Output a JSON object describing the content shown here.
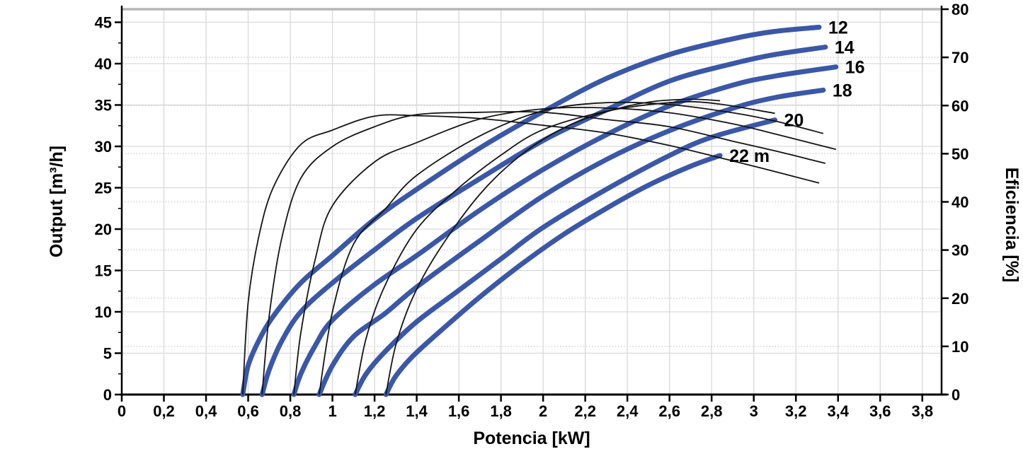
{
  "chart_data": {
    "type": "line",
    "title": "",
    "xlabel": "Potencia [kW]",
    "ylabel_left": "Output [m³/h]",
    "ylabel_right": "Eficiencia [%]",
    "xlim": [
      0,
      3.89
    ],
    "ylim_left": [
      0,
      46.6
    ],
    "ylim_right": [
      0,
      80
    ],
    "grid": {
      "vertical_step_kw": 0.2,
      "horizontal_solid_step_left": 5,
      "horizontal_dotted_step_right": 10,
      "legend": "none"
    },
    "colors": {
      "head_curve": "#3a57a8",
      "efficiency_curve": "#141414",
      "grid_solid": "#d9d9d9",
      "grid_dotted": "#c9c9c9",
      "top_border": "#b5b5b5",
      "axis": "#000000"
    },
    "x_ticks": [
      {
        "value": 0,
        "label": "0"
      },
      {
        "value": 0.2,
        "label": "0,2"
      },
      {
        "value": 0.4,
        "label": "0,4"
      },
      {
        "value": 0.6,
        "label": "0,6"
      },
      {
        "value": 0.8,
        "label": "0,8"
      },
      {
        "value": 1,
        "label": "1"
      },
      {
        "value": 1.2,
        "label": "1,2"
      },
      {
        "value": 1.4,
        "label": "1,4"
      },
      {
        "value": 1.6,
        "label": "1,6"
      },
      {
        "value": 1.8,
        "label": "1,8"
      },
      {
        "value": 2,
        "label": "2"
      },
      {
        "value": 2.2,
        "label": "2,2"
      },
      {
        "value": 2.4,
        "label": "2,4"
      },
      {
        "value": 2.6,
        "label": "2,6"
      },
      {
        "value": 2.8,
        "label": "2,8"
      },
      {
        "value": 3,
        "label": "3"
      },
      {
        "value": 3.2,
        "label": "3,2"
      },
      {
        "value": 3.4,
        "label": "3,4"
      },
      {
        "value": 3.6,
        "label": "3,6"
      },
      {
        "value": 3.8,
        "label": "3,8"
      }
    ],
    "y_ticks_left": [
      {
        "value": 0,
        "label": "0"
      },
      {
        "value": 5,
        "label": "5"
      },
      {
        "value": 10,
        "label": "10"
      },
      {
        "value": 15,
        "label": "15"
      },
      {
        "value": 20,
        "label": "20"
      },
      {
        "value": 25,
        "label": "25"
      },
      {
        "value": 30,
        "label": "30"
      },
      {
        "value": 35,
        "label": "35"
      },
      {
        "value": 40,
        "label": "40"
      },
      {
        "value": 45,
        "label": "45"
      }
    ],
    "y_ticks_right": [
      {
        "value": 0,
        "label": "0"
      },
      {
        "value": 10,
        "label": "10"
      },
      {
        "value": 20,
        "label": "20"
      },
      {
        "value": 30,
        "label": "30"
      },
      {
        "value": 40,
        "label": "40"
      },
      {
        "value": 50,
        "label": "50"
      },
      {
        "value": 60,
        "label": "60"
      },
      {
        "value": 70,
        "label": "70"
      },
      {
        "value": 80,
        "label": "80"
      }
    ],
    "head_curves": [
      {
        "label": "12",
        "head_m": 12,
        "points": [
          [
            0.574,
            0
          ],
          [
            0.6,
            3.5
          ],
          [
            0.65,
            6.5
          ],
          [
            0.72,
            9.5
          ],
          [
            0.85,
            13.5
          ],
          [
            1.0,
            16.8
          ],
          [
            1.2,
            21.2
          ],
          [
            1.4,
            24.8
          ],
          [
            1.7,
            29.8
          ],
          [
            2.0,
            34.2
          ],
          [
            2.3,
            38.2
          ],
          [
            2.6,
            41.1
          ],
          [
            2.9,
            43.0
          ],
          [
            3.1,
            43.9
          ],
          [
            3.31,
            44.4
          ]
        ]
      },
      {
        "label": "14",
        "head_m": 14,
        "points": [
          [
            0.666,
            0
          ],
          [
            0.7,
            3.0
          ],
          [
            0.76,
            6.5
          ],
          [
            0.85,
            10.0
          ],
          [
            1.0,
            13.5
          ],
          [
            1.2,
            17.5
          ],
          [
            1.4,
            21.3
          ],
          [
            1.7,
            26.1
          ],
          [
            2.0,
            30.7
          ],
          [
            2.3,
            34.4
          ],
          [
            2.6,
            37.9
          ],
          [
            2.9,
            40.0
          ],
          [
            3.1,
            41.1
          ],
          [
            3.34,
            42.0
          ]
        ]
      },
      {
        "label": "16",
        "head_m": 16,
        "points": [
          [
            0.817,
            0
          ],
          [
            0.85,
            2.5
          ],
          [
            0.92,
            6.0
          ],
          [
            1.0,
            9.0
          ],
          [
            1.2,
            13.3
          ],
          [
            1.4,
            16.8
          ],
          [
            1.7,
            22.3
          ],
          [
            2.0,
            27.2
          ],
          [
            2.3,
            31.4
          ],
          [
            2.6,
            34.9
          ],
          [
            2.9,
            37.4
          ],
          [
            3.1,
            38.5
          ],
          [
            3.39,
            39.6
          ]
        ]
      },
      {
        "label": "18",
        "head_m": 18,
        "points": [
          [
            0.937,
            0
          ],
          [
            1.0,
            3.5
          ],
          [
            1.1,
            7.0
          ],
          [
            1.25,
            9.8
          ],
          [
            1.4,
            13.0
          ],
          [
            1.7,
            18.6
          ],
          [
            2.0,
            24.0
          ],
          [
            2.3,
            28.4
          ],
          [
            2.6,
            31.9
          ],
          [
            2.9,
            34.6
          ],
          [
            3.1,
            35.9
          ],
          [
            3.33,
            36.8
          ]
        ]
      },
      {
        "label": "20",
        "head_m": 20,
        "points": [
          [
            1.108,
            0
          ],
          [
            1.16,
            2.5
          ],
          [
            1.25,
            5.2
          ],
          [
            1.4,
            8.8
          ],
          [
            1.6,
            12.6
          ],
          [
            1.8,
            16.4
          ],
          [
            2.0,
            20.2
          ],
          [
            2.3,
            24.8
          ],
          [
            2.6,
            28.9
          ],
          [
            2.8,
            31.1
          ],
          [
            3.1,
            33.2
          ]
        ]
      },
      {
        "label": "22 m",
        "head_m": 22,
        "points": [
          [
            1.254,
            0
          ],
          [
            1.3,
            2.2
          ],
          [
            1.38,
            4.6
          ],
          [
            1.5,
            7.4
          ],
          [
            1.7,
            11.8
          ],
          [
            1.9,
            15.8
          ],
          [
            2.1,
            19.4
          ],
          [
            2.3,
            22.5
          ],
          [
            2.5,
            25.3
          ],
          [
            2.7,
            27.6
          ],
          [
            2.84,
            28.9
          ]
        ]
      }
    ],
    "efficiency_curves": [
      {
        "head_m": 12,
        "points": [
          [
            0.574,
            0
          ],
          [
            0.6,
            19.1
          ],
          [
            0.65,
            32.7
          ],
          [
            0.72,
            43.1
          ],
          [
            0.85,
            51.9
          ],
          [
            1.0,
            54.9
          ],
          [
            1.2,
            57.8
          ],
          [
            1.4,
            57.9
          ],
          [
            1.7,
            57.3
          ],
          [
            2.0,
            55.9
          ],
          [
            2.3,
            54.3
          ],
          [
            2.6,
            51.7
          ],
          [
            2.9,
            48.5
          ],
          [
            3.1,
            46.3
          ],
          [
            3.31,
            43.9
          ]
        ]
      },
      {
        "head_m": 14,
        "points": [
          [
            0.666,
            0
          ],
          [
            0.7,
            16.4
          ],
          [
            0.76,
            32.6
          ],
          [
            0.85,
            44.9
          ],
          [
            1.0,
            51.5
          ],
          [
            1.2,
            55.6
          ],
          [
            1.4,
            58.1
          ],
          [
            1.7,
            58.6
          ],
          [
            2.0,
            58.6
          ],
          [
            2.3,
            57.1
          ],
          [
            2.6,
            55.6
          ],
          [
            2.9,
            52.6
          ],
          [
            3.1,
            50.6
          ],
          [
            3.34,
            48.0
          ]
        ]
      },
      {
        "head_m": 16,
        "points": [
          [
            0.817,
            0
          ],
          [
            0.85,
            12.8
          ],
          [
            0.92,
            28.4
          ],
          [
            1.0,
            39.2
          ],
          [
            1.2,
            48.3
          ],
          [
            1.4,
            52.3
          ],
          [
            1.7,
            57.2
          ],
          [
            2.0,
            59.3
          ],
          [
            2.3,
            59.5
          ],
          [
            2.6,
            58.5
          ],
          [
            2.9,
            56.2
          ],
          [
            3.1,
            54.1
          ],
          [
            3.39,
            50.9
          ]
        ]
      },
      {
        "head_m": 18,
        "points": [
          [
            0.937,
            0
          ],
          [
            1.0,
            17.2
          ],
          [
            1.1,
            31.2
          ],
          [
            1.25,
            38.5
          ],
          [
            1.4,
            45.5
          ],
          [
            1.7,
            53.7
          ],
          [
            2.0,
            58.9
          ],
          [
            2.3,
            60.6
          ],
          [
            2.6,
            60.2
          ],
          [
            2.9,
            58.5
          ],
          [
            3.1,
            56.8
          ],
          [
            3.33,
            54.2
          ]
        ]
      },
      {
        "head_m": 20,
        "points": [
          [
            1.108,
            0
          ],
          [
            1.16,
            11.7
          ],
          [
            1.25,
            22.7
          ],
          [
            1.4,
            34.3
          ],
          [
            1.6,
            42.9
          ],
          [
            1.8,
            49.7
          ],
          [
            2.0,
            55.0
          ],
          [
            2.3,
            58.8
          ],
          [
            2.6,
            60.6
          ],
          [
            2.8,
            60.5
          ],
          [
            3.1,
            58.4
          ]
        ]
      },
      {
        "head_m": 22,
        "points": [
          [
            1.254,
            0
          ],
          [
            1.3,
            10.1
          ],
          [
            1.38,
            20.0
          ],
          [
            1.5,
            29.6
          ],
          [
            1.7,
            41.6
          ],
          [
            1.9,
            49.9
          ],
          [
            2.1,
            55.4
          ],
          [
            2.3,
            58.7
          ],
          [
            2.5,
            60.7
          ],
          [
            2.7,
            61.3
          ],
          [
            2.84,
            61.0
          ]
        ]
      }
    ]
  }
}
